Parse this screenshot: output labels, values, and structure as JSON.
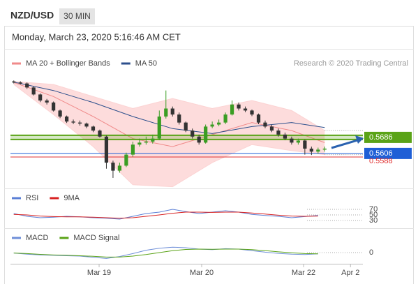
{
  "header": {
    "symbol": "NZD/USD",
    "interval": "30 MIN",
    "date": "Monday, March 23, 2020 5:16:46 AM CET"
  },
  "chart_data": [
    {
      "type": "candlestick",
      "source": "Research © 2020 Trading Central",
      "xlim": [
        -0.5,
        52.77
      ],
      "ylim": [
        0.5449,
        0.5971
      ],
      "up_color": "#3a9d23",
      "down_color": "#333333",
      "band_color": "#fcd3d3",
      "x": [
        0,
        1,
        2,
        3,
        4,
        5,
        6,
        7,
        8,
        9,
        10,
        11,
        12,
        13,
        14,
        15,
        16,
        17,
        18,
        19,
        20,
        21,
        22,
        23,
        24,
        25,
        26,
        27,
        28,
        29,
        30,
        31,
        32,
        33,
        34,
        35,
        36,
        37,
        38,
        39,
        40,
        41,
        42,
        43,
        44,
        45,
        46,
        47
      ],
      "open": [
        0.5965,
        0.596,
        0.5955,
        0.5935,
        0.59,
        0.587,
        0.586,
        0.582,
        0.579,
        0.5765,
        0.576,
        0.5755,
        0.574,
        0.572,
        0.569,
        0.556,
        0.552,
        0.5545,
        0.56,
        0.565,
        0.566,
        0.5665,
        0.568,
        0.579,
        0.583,
        0.58,
        0.576,
        0.572,
        0.569,
        0.566,
        0.574,
        0.575,
        0.576,
        0.58,
        0.585,
        0.583,
        0.582,
        0.58,
        0.576,
        0.574,
        0.572,
        0.57,
        0.568,
        0.566,
        0.567,
        0.563,
        0.5615,
        0.5625
      ],
      "high": [
        0.597,
        0.5966,
        0.596,
        0.594,
        0.5905,
        0.5878,
        0.5865,
        0.5825,
        0.5795,
        0.5775,
        0.577,
        0.576,
        0.5745,
        0.5725,
        0.5695,
        0.557,
        0.556,
        0.561,
        0.5665,
        0.568,
        0.569,
        0.57,
        0.582,
        0.592,
        0.584,
        0.581,
        0.5765,
        0.573,
        0.57,
        0.575,
        0.5765,
        0.5775,
        0.581,
        0.587,
        0.586,
        0.584,
        0.5825,
        0.5805,
        0.577,
        0.575,
        0.573,
        0.571,
        0.569,
        0.568,
        0.5675,
        0.564,
        0.5635,
        0.564
      ],
      "low": [
        0.5955,
        0.595,
        0.5928,
        0.5895,
        0.5862,
        0.585,
        0.5815,
        0.5782,
        0.5758,
        0.5752,
        0.5745,
        0.5732,
        0.5712,
        0.5685,
        0.553,
        0.5484,
        0.551,
        0.5538,
        0.559,
        0.564,
        0.565,
        0.5655,
        0.5672,
        0.578,
        0.579,
        0.575,
        0.5712,
        0.568,
        0.565,
        0.5655,
        0.5732,
        0.5742,
        0.5752,
        0.5795,
        0.582,
        0.5812,
        0.5792,
        0.5752,
        0.5732,
        0.5712,
        0.569,
        0.5672,
        0.565,
        0.565,
        0.56,
        0.5598,
        0.5605,
        0.5615
      ],
      "close": [
        0.596,
        0.5955,
        0.5935,
        0.59,
        0.587,
        0.586,
        0.582,
        0.579,
        0.5765,
        0.576,
        0.5755,
        0.574,
        0.572,
        0.569,
        0.556,
        0.552,
        0.5545,
        0.56,
        0.565,
        0.566,
        0.5665,
        0.568,
        0.579,
        0.583,
        0.58,
        0.576,
        0.572,
        0.569,
        0.566,
        0.574,
        0.575,
        0.576,
        0.58,
        0.585,
        0.583,
        0.582,
        0.58,
        0.576,
        0.574,
        0.572,
        0.57,
        0.568,
        0.566,
        0.567,
        0.563,
        0.5615,
        0.5625,
        0.563
      ],
      "series": [
        {
          "name": "MA 20 + Bollinger Bands",
          "color": "#f08a8a",
          "x": [
            0,
            6,
            12,
            18,
            24,
            30,
            36,
            42,
            47
          ],
          "values": [
            0.596,
            0.589,
            0.579,
            0.568,
            0.564,
            0.57,
            0.576,
            0.572,
            0.566
          ],
          "upper": [
            0.5965,
            0.595,
            0.589,
            0.583,
            0.588,
            0.583,
            0.587,
            0.582,
            0.572
          ],
          "lower": [
            0.595,
            0.58,
            0.564,
            0.545,
            0.544,
            0.556,
            0.565,
            0.562,
            0.56
          ]
        },
        {
          "name": "MA 50",
          "color": "#2c4f8c",
          "x": [
            0,
            6,
            12,
            18,
            24,
            30,
            36,
            42,
            47
          ],
          "values": [
            0.5962,
            0.592,
            0.586,
            0.579,
            0.573,
            0.5705,
            0.574,
            0.576,
            0.5735
          ]
        }
      ],
      "levels": [
        {
          "value": 0.5686,
          "color": "#5aa317"
        },
        {
          "value": 0.5606,
          "color": "#1f5fd6"
        },
        {
          "value": 0.5588,
          "color": "#e03030"
        }
      ]
    },
    {
      "type": "line",
      "xlim": [
        -0.5,
        52.77
      ],
      "ylim": [
        10,
        90
      ],
      "yticks": [
        30,
        50,
        70
      ],
      "series": [
        {
          "name": "RSI",
          "color": "#5b7fd6",
          "x": [
            0,
            2,
            4,
            6,
            8,
            10,
            12,
            14,
            16,
            18,
            20,
            22,
            24,
            26,
            28,
            30,
            32,
            34,
            36,
            38,
            40,
            42,
            44,
            46
          ],
          "values": [
            55,
            45,
            40,
            42,
            45,
            43,
            40,
            38,
            35,
            45,
            55,
            60,
            70,
            62,
            55,
            60,
            65,
            60,
            52,
            48,
            45,
            40,
            44,
            48
          ]
        },
        {
          "name": "9MA",
          "color": "#d82222",
          "x": [
            0,
            2,
            4,
            6,
            8,
            10,
            12,
            14,
            16,
            18,
            20,
            22,
            24,
            26,
            28,
            30,
            32,
            34,
            36,
            38,
            40,
            42,
            44,
            46
          ],
          "values": [
            52,
            50,
            46,
            44,
            43,
            43,
            42,
            40,
            38,
            40,
            45,
            50,
            56,
            60,
            60,
            59,
            60,
            60,
            57,
            53,
            49,
            46,
            45,
            46
          ]
        }
      ]
    },
    {
      "type": "line",
      "xlim": [
        -0.5,
        52.77
      ],
      "ylim": [
        -0.005,
        0.005
      ],
      "yticks": [
        0
      ],
      "xticks": [
        {
          "value": 12.9,
          "label": "Mar 19"
        },
        {
          "value": 28.4,
          "label": "Mar 20"
        },
        {
          "value": 43.8,
          "label": "Mar 22"
        },
        {
          "value": 50.9,
          "label": "Apr 2"
        }
      ],
      "series": [
        {
          "name": "MACD",
          "color": "#6f8fd8",
          "x": [
            0,
            2,
            4,
            6,
            8,
            10,
            12,
            14,
            16,
            18,
            20,
            22,
            24,
            26,
            28,
            30,
            32,
            34,
            36,
            38,
            40,
            42,
            44,
            46
          ],
          "values": [
            -0.0002,
            -0.0008,
            -0.0012,
            -0.0014,
            -0.0016,
            -0.0018,
            -0.0024,
            -0.003,
            -0.002,
            -0.0005,
            0.0012,
            0.0022,
            0.0028,
            0.0025,
            0.0018,
            0.0015,
            0.002,
            0.0018,
            0.001,
            0.0002,
            -0.0004,
            -0.0008,
            -0.001,
            -0.0006
          ]
        },
        {
          "name": "MACD Signal",
          "color": "#5aa317",
          "x": [
            0,
            2,
            4,
            6,
            8,
            10,
            12,
            14,
            16,
            18,
            20,
            22,
            24,
            26,
            28,
            30,
            32,
            34,
            36,
            38,
            40,
            42,
            44,
            46
          ],
          "values": [
            -0.0002,
            -0.0005,
            -0.0009,
            -0.0012,
            -0.0014,
            -0.0016,
            -0.0019,
            -0.0023,
            -0.0023,
            -0.0018,
            -0.001,
            0.0,
            0.001,
            0.0016,
            0.0018,
            0.0017,
            0.0018,
            0.0018,
            0.0015,
            0.001,
            0.0004,
            -0.0001,
            -0.0005,
            -0.0006
          ]
        }
      ]
    }
  ]
}
